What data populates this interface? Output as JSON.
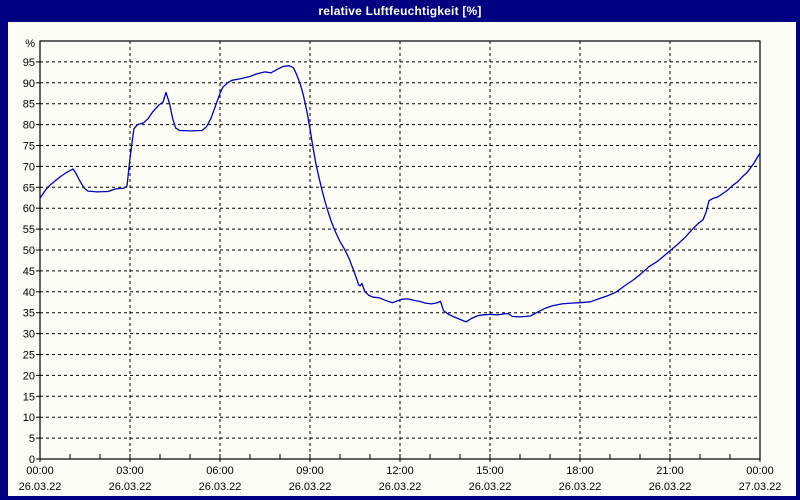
{
  "window": {
    "title": "relative Luftfeuchtigkeit [%]"
  },
  "colors": {
    "frame": "#000080",
    "title_text": "#ffffff",
    "plot_background": "#fcfdf5",
    "grid": "#000000",
    "axis": "#000000",
    "tick_text": "#000000",
    "line": "#0000bb"
  },
  "chart_data": {
    "type": "line",
    "title": "relative Luftfeuchtigkeit [%]",
    "ylabel": "%",
    "y_unit_label": "%",
    "ylim": [
      0,
      100
    ],
    "y_ticks": [
      0,
      5,
      10,
      15,
      20,
      25,
      30,
      35,
      40,
      45,
      50,
      55,
      60,
      65,
      70,
      75,
      80,
      85,
      90,
      95
    ],
    "x_hours_range": [
      0,
      24
    ],
    "x_minor_tick_every_hours": 1,
    "grid": "dashed",
    "legend": "none",
    "x_major_ticks": [
      {
        "hour": 0,
        "time": "00:00",
        "date": "26.03.22"
      },
      {
        "hour": 3,
        "time": "03:00",
        "date": "26.03.22"
      },
      {
        "hour": 6,
        "time": "06:00",
        "date": "26.03.22"
      },
      {
        "hour": 9,
        "time": "09:00",
        "date": "26.03.22"
      },
      {
        "hour": 12,
        "time": "12:00",
        "date": "26.03.22"
      },
      {
        "hour": 15,
        "time": "15:00",
        "date": "26.03.22"
      },
      {
        "hour": 18,
        "time": "18:00",
        "date": "26.03.22"
      },
      {
        "hour": 21,
        "time": "21:00",
        "date": "26.03.22"
      },
      {
        "hour": 24,
        "time": "00:00",
        "date": "27.03.22"
      }
    ],
    "series": [
      {
        "name": "relative Luftfeuchtigkeit",
        "unit": "%",
        "color": "#0000bb",
        "points": [
          [
            0.0,
            62.4
          ],
          [
            0.17,
            64.2
          ],
          [
            0.33,
            65.5
          ],
          [
            0.5,
            66.5
          ],
          [
            0.67,
            67.5
          ],
          [
            0.85,
            68.4
          ],
          [
            1.0,
            69.0
          ],
          [
            1.1,
            69.4
          ],
          [
            1.2,
            68.3
          ],
          [
            1.33,
            66.5
          ],
          [
            1.47,
            64.8
          ],
          [
            1.6,
            64.1
          ],
          [
            1.9,
            63.9
          ],
          [
            2.27,
            64.0
          ],
          [
            2.5,
            64.6
          ],
          [
            2.8,
            64.8
          ],
          [
            2.9,
            65.3
          ],
          [
            3.0,
            72.0
          ],
          [
            3.13,
            79.0
          ],
          [
            3.25,
            80.0
          ],
          [
            3.45,
            80.4
          ],
          [
            3.6,
            81.4
          ],
          [
            3.75,
            83.0
          ],
          [
            3.95,
            84.6
          ],
          [
            4.1,
            85.4
          ],
          [
            4.2,
            87.7
          ],
          [
            4.32,
            85.0
          ],
          [
            4.42,
            81.5
          ],
          [
            4.52,
            79.2
          ],
          [
            4.65,
            78.6
          ],
          [
            5.0,
            78.5
          ],
          [
            5.4,
            78.6
          ],
          [
            5.55,
            79.5
          ],
          [
            5.7,
            81.5
          ],
          [
            5.85,
            84.5
          ],
          [
            6.0,
            87.5
          ],
          [
            6.1,
            89.0
          ],
          [
            6.25,
            90.0
          ],
          [
            6.4,
            90.6
          ],
          [
            6.7,
            91.0
          ],
          [
            7.0,
            91.5
          ],
          [
            7.25,
            92.2
          ],
          [
            7.5,
            92.6
          ],
          [
            7.7,
            92.4
          ],
          [
            7.9,
            93.2
          ],
          [
            8.1,
            93.9
          ],
          [
            8.3,
            94.1
          ],
          [
            8.45,
            93.6
          ],
          [
            8.55,
            92.0
          ],
          [
            8.67,
            89.8
          ],
          [
            8.78,
            87.0
          ],
          [
            8.9,
            83.0
          ],
          [
            9.0,
            79.0
          ],
          [
            9.1,
            74.5
          ],
          [
            9.2,
            70.5
          ],
          [
            9.3,
            67.3
          ],
          [
            9.4,
            64.3
          ],
          [
            9.5,
            61.6
          ],
          [
            9.6,
            59.2
          ],
          [
            9.7,
            57.0
          ],
          [
            9.85,
            54.3
          ],
          [
            10.0,
            52.0
          ],
          [
            10.15,
            50.2
          ],
          [
            10.3,
            48.0
          ],
          [
            10.45,
            45.2
          ],
          [
            10.55,
            43.2
          ],
          [
            10.62,
            41.7
          ],
          [
            10.67,
            41.4
          ],
          [
            10.73,
            42.0
          ],
          [
            10.82,
            40.2
          ],
          [
            10.95,
            39.2
          ],
          [
            11.1,
            38.7
          ],
          [
            11.3,
            38.6
          ],
          [
            11.5,
            38.0
          ],
          [
            11.65,
            37.6
          ],
          [
            11.75,
            37.4
          ],
          [
            11.9,
            37.8
          ],
          [
            12.05,
            38.2
          ],
          [
            12.25,
            38.3
          ],
          [
            12.45,
            38.0
          ],
          [
            12.65,
            37.7
          ],
          [
            12.85,
            37.3
          ],
          [
            13.05,
            37.1
          ],
          [
            13.25,
            37.4
          ],
          [
            13.35,
            37.7
          ],
          [
            13.45,
            35.5
          ],
          [
            13.6,
            34.7
          ],
          [
            13.8,
            34.0
          ],
          [
            14.0,
            33.4
          ],
          [
            14.2,
            32.8
          ],
          [
            14.4,
            33.7
          ],
          [
            14.6,
            34.3
          ],
          [
            14.8,
            34.5
          ],
          [
            15.0,
            34.6
          ],
          [
            15.25,
            34.5
          ],
          [
            15.45,
            34.7
          ],
          [
            15.6,
            34.8
          ],
          [
            15.75,
            34.1
          ],
          [
            16.0,
            34.0
          ],
          [
            16.35,
            34.2
          ],
          [
            16.6,
            35.2
          ],
          [
            16.85,
            36.1
          ],
          [
            17.1,
            36.7
          ],
          [
            17.4,
            37.1
          ],
          [
            17.7,
            37.3
          ],
          [
            18.0,
            37.4
          ],
          [
            18.35,
            37.6
          ],
          [
            18.65,
            38.4
          ],
          [
            18.9,
            39.0
          ],
          [
            19.2,
            39.9
          ],
          [
            19.5,
            41.5
          ],
          [
            19.75,
            42.7
          ],
          [
            20.0,
            44.1
          ],
          [
            20.3,
            46.0
          ],
          [
            20.6,
            47.4
          ],
          [
            20.8,
            48.6
          ],
          [
            21.0,
            49.8
          ],
          [
            21.2,
            51.0
          ],
          [
            21.5,
            53.0
          ],
          [
            21.75,
            55.0
          ],
          [
            21.95,
            56.4
          ],
          [
            22.1,
            57.2
          ],
          [
            22.2,
            59.0
          ],
          [
            22.3,
            61.8
          ],
          [
            22.45,
            62.4
          ],
          [
            22.6,
            62.7
          ],
          [
            22.9,
            64.2
          ],
          [
            23.1,
            65.5
          ],
          [
            23.25,
            66.3
          ],
          [
            23.45,
            67.8
          ],
          [
            23.55,
            68.4
          ],
          [
            23.65,
            69.3
          ],
          [
            23.8,
            70.8
          ],
          [
            23.9,
            72.0
          ],
          [
            24.0,
            73.2
          ]
        ]
      }
    ]
  }
}
